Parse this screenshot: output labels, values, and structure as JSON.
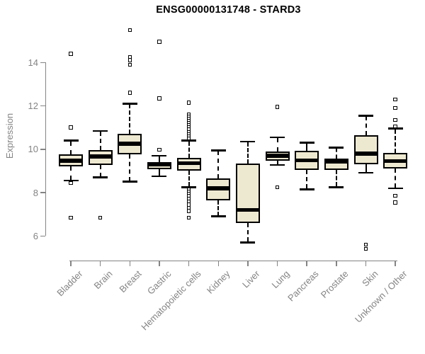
{
  "title": "ENSG00000131748 - STARD3",
  "y_axis": {
    "label": "Expression",
    "tick_labels": [
      "6",
      "8",
      "10",
      "12",
      "14"
    ]
  },
  "chart_data": {
    "type": "boxplot",
    "title": "ENSG00000131748 - STARD3",
    "xlabel": "",
    "ylabel": "Expression",
    "y_ticks": [
      6,
      8,
      10,
      12,
      14
    ],
    "ylim": [
      5.2,
      15.9
    ],
    "grid": false,
    "legend": false,
    "categories": [
      "Bladder",
      "Brain",
      "Breast",
      "Gastric",
      "Hematopoietic cells",
      "Kidney",
      "Liver",
      "Lung",
      "Pancreas",
      "Prostate",
      "Skin",
      "Unknown / Other"
    ],
    "series": [
      {
        "name": "Bladder",
        "whisker_low": 8.55,
        "q1": 9.22,
        "median": 9.47,
        "q3": 9.75,
        "whisker_high": 10.4,
        "outliers": [
          14.4,
          11.0,
          8.45,
          6.85
        ]
      },
      {
        "name": "Brain",
        "whisker_low": 8.7,
        "q1": 9.28,
        "median": 9.67,
        "q3": 9.95,
        "whisker_high": 10.85,
        "outliers": [
          6.85
        ]
      },
      {
        "name": "Breast",
        "whisker_low": 8.5,
        "q1": 9.78,
        "median": 10.25,
        "q3": 10.7,
        "whisker_high": 12.1,
        "outliers": [
          15.5,
          14.25,
          14.1,
          13.9,
          12.6
        ]
      },
      {
        "name": "Gastric",
        "whisker_low": 8.75,
        "q1": 9.08,
        "median": 9.3,
        "q3": 9.42,
        "whisker_high": 9.7,
        "outliers": [
          14.95,
          12.35,
          9.97
        ]
      },
      {
        "name": "Hematopoietic cells",
        "whisker_low": 8.25,
        "q1": 9.0,
        "median": 9.35,
        "q3": 9.6,
        "whisker_high": 10.4,
        "outliers": [
          12.15,
          11.6,
          11.5,
          11.4,
          11.3,
          11.2,
          11.1,
          11.0,
          10.9,
          10.8,
          10.7,
          10.6,
          10.5,
          8.15,
          8.05,
          7.95,
          7.85,
          7.7,
          7.6,
          7.45,
          7.3,
          7.15,
          6.85
        ]
      },
      {
        "name": "Kidney",
        "whisker_low": 6.9,
        "q1": 7.65,
        "median": 8.2,
        "q3": 8.65,
        "whisker_high": 9.95,
        "outliers": []
      },
      {
        "name": "Liver",
        "whisker_low": 5.7,
        "q1": 6.6,
        "median": 7.2,
        "q3": 9.35,
        "whisker_high": 10.35,
        "outliers": []
      },
      {
        "name": "Lung",
        "whisker_low": 9.27,
        "q1": 9.48,
        "median": 9.7,
        "q3": 9.88,
        "whisker_high": 10.55,
        "outliers": [
          11.95,
          8.25
        ]
      },
      {
        "name": "Pancreas",
        "whisker_low": 8.15,
        "q1": 9.05,
        "median": 9.48,
        "q3": 9.92,
        "whisker_high": 10.3,
        "outliers": []
      },
      {
        "name": "Prostate",
        "whisker_low": 8.25,
        "q1": 9.05,
        "median": 9.42,
        "q3": 9.58,
        "whisker_high": 10.08,
        "outliers": []
      },
      {
        "name": "Skin",
        "whisker_low": 8.92,
        "q1": 9.3,
        "median": 9.8,
        "q3": 10.65,
        "whisker_high": 11.55,
        "outliers": [
          5.6,
          5.4
        ]
      },
      {
        "name": "Unknown / Other",
        "whisker_low": 8.2,
        "q1": 9.12,
        "median": 9.45,
        "q3": 9.83,
        "whisker_high": 10.95,
        "outliers": [
          12.3,
          11.9,
          11.35,
          11.05,
          7.85,
          7.55
        ]
      }
    ]
  },
  "colors": {
    "box_fill": "#EDE8D0",
    "box_border": "#000000",
    "median": "#000000",
    "whisker": "#000000",
    "outlier": "#000000",
    "axis": "#848484",
    "tick_label": "#848484",
    "title": "#000000",
    "background": "#FFFFFF"
  }
}
